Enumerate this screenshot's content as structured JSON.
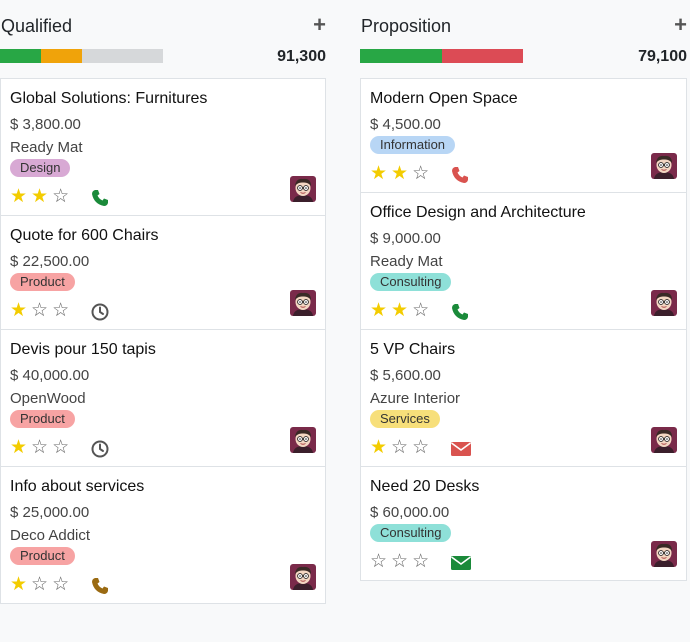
{
  "columns": [
    {
      "title": "Qualified",
      "add_label": "+",
      "total": "91,300",
      "progress_colors": [
        "#28a745",
        "#f0a30a",
        "#d6d8da"
      ],
      "progress_fractions": [
        0.25,
        0.25,
        0.5
      ],
      "cards": [
        {
          "title": "Global Solutions: Furnitures",
          "amount": "$ 3,800.00",
          "customer": "Ready Mat",
          "tag": "Design",
          "tag_color": "#d8a9d4",
          "stars": 2,
          "activity": "phone-icon",
          "activity_color": "#1a8a3a"
        },
        {
          "title": "Quote for 600 Chairs",
          "amount": "$ 22,500.00",
          "customer": "",
          "tag": "Product",
          "tag_color": "#f7a3a3",
          "stars": 1,
          "activity": "clock-icon",
          "activity_color": "#555555"
        },
        {
          "title": "Devis pour 150 tapis",
          "amount": "$ 40,000.00",
          "customer": "OpenWood",
          "tag": "Product",
          "tag_color": "#f7a3a3",
          "stars": 1,
          "activity": "clock-icon",
          "activity_color": "#555555"
        },
        {
          "title": "Info about services",
          "amount": "$ 25,000.00",
          "customer": "Deco Addict",
          "tag": "Product",
          "tag_color": "#f7a3a3",
          "stars": 1,
          "activity": "phone-icon",
          "activity_color": "#9a6a12"
        }
      ]
    },
    {
      "title": "Proposition",
      "add_label": "+",
      "total": "79,100",
      "progress_colors": [
        "#28a745",
        "#dc4b55"
      ],
      "progress_fractions": [
        0.5,
        0.5
      ],
      "cards": [
        {
          "title": "Modern Open Space",
          "amount": "$ 4,500.00",
          "customer": "",
          "tag": "Information",
          "tag_color": "#b8d6f5",
          "stars": 2,
          "activity": "phone-icon",
          "activity_color": "#d9534f"
        },
        {
          "title": "Office Design and Architecture",
          "amount": "$ 9,000.00",
          "customer": "Ready Mat",
          "tag": "Consulting",
          "tag_color": "#8ee0d8",
          "stars": 2,
          "activity": "phone-icon",
          "activity_color": "#1a8a3a"
        },
        {
          "title": "5 VP Chairs",
          "amount": "$ 5,600.00",
          "customer": "Azure Interior",
          "tag": "Services",
          "tag_color": "#f7df7a",
          "stars": 1,
          "activity": "envelope-icon",
          "activity_color": "#d9534f"
        },
        {
          "title": "Need 20 Desks",
          "amount": "$ 60,000.00",
          "customer": "",
          "tag": "Consulting",
          "tag_color": "#8ee0d8",
          "stars": 0,
          "activity": "envelope-icon",
          "activity_color": "#1a8a3a"
        }
      ]
    }
  ]
}
